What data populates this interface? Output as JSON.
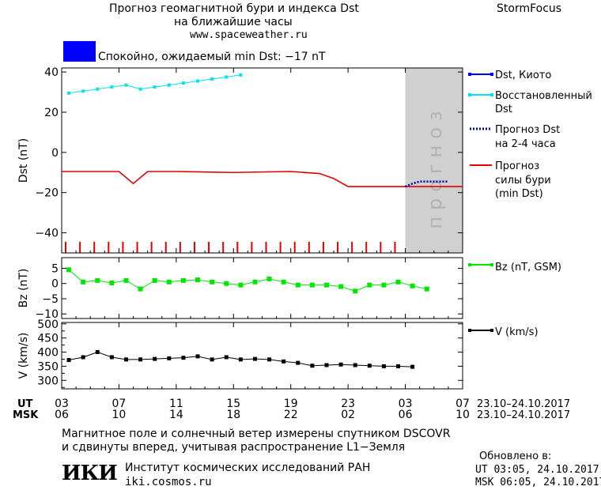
{
  "header": {
    "title_line1": "Прогноз геомагнитной бури и индекса Dst",
    "title_line2": "на ближайшие часы",
    "url": "www.spaceweather.ru",
    "brand": "StormFocus"
  },
  "status": {
    "text": "Спокойно, ожидаемый min Dst: −17 nT",
    "color": "#0000ff"
  },
  "colors": {
    "dst_kyoto": "#0000ff",
    "dst_restored": "#00e5e5",
    "dst_forecast": "#0000b0",
    "storm_forecast": "#e00000",
    "bz": "#00e600",
    "v": "#000000",
    "forecast_zone": "#d0d0d0"
  },
  "chart_data": [
    {
      "type": "line",
      "ylabel": "Dst (nT)",
      "ylim": [
        -50,
        42
      ],
      "yticks": [
        40,
        20,
        0,
        -20,
        -40
      ],
      "yticks_labels": [
        "40",
        "20",
        "0",
        "−20",
        "−40"
      ],
      "forecast_zone": {
        "x_start": 24.0,
        "x_end": 28.0,
        "label": "прогноз"
      },
      "series": [
        {
          "name": "Dst, Киото",
          "x": [],
          "y": []
        },
        {
          "name": "Восстановленный Dst",
          "x": [
            0.5,
            1.5,
            2.5,
            3.5,
            4.5,
            5.5,
            6.5,
            7.5,
            8.5,
            9.5,
            10.5,
            11.5,
            12.5
          ],
          "y": [
            29.5,
            30.5,
            31.5,
            32.5,
            33.5,
            31.5,
            32.5,
            33.5,
            34.5,
            35.5,
            36.5,
            37.5,
            38.5
          ]
        },
        {
          "name": "Прогноз Dst на 2-4 часа",
          "x": [
            24.0,
            24.5,
            25.0,
            26.0,
            27.0
          ],
          "y": [
            -17.0,
            -15.5,
            -14.5,
            -14.5,
            -14.5
          ]
        },
        {
          "name": "Прогноз силы бури (min Dst)",
          "x": [
            0,
            4,
            5,
            6,
            8,
            12,
            16,
            18,
            19,
            20,
            24,
            28
          ],
          "y": [
            -9.5,
            -9.5,
            -15.5,
            -9.5,
            -9.5,
            -10,
            -9.5,
            -10.5,
            -13,
            -17,
            -17,
            -17
          ]
        }
      ]
    },
    {
      "type": "line",
      "ylabel": "Bz (nT)",
      "ylim": [
        -11.5,
        8.5
      ],
      "yticks": [
        5,
        0,
        -5,
        -10
      ],
      "yticks_labels": [
        "5",
        "0",
        "−5",
        "−10"
      ],
      "series": [
        {
          "name": "Bz (nT, GSM)",
          "x": [
            0.5,
            1.5,
            2.5,
            3.5,
            4.5,
            5.5,
            6.5,
            7.5,
            8.5,
            9.5,
            10.5,
            11.5,
            12.5,
            13.5,
            14.5,
            15.5,
            16.5,
            17.5,
            18.5,
            19.5,
            20.5,
            21.5,
            22.5,
            23.5,
            24.5,
            25.5
          ],
          "y": [
            4.5,
            0.5,
            1.0,
            0.2,
            1.0,
            -1.8,
            1.0,
            0.5,
            1.0,
            1.2,
            0.5,
            0.0,
            -0.5,
            0.5,
            1.5,
            0.5,
            -0.5,
            -0.5,
            -0.5,
            -1.0,
            -2.5,
            -0.5,
            -0.5,
            0.5,
            -0.8,
            -1.8
          ]
        }
      ]
    },
    {
      "type": "line",
      "ylabel": "V (km/s)",
      "ylim": [
        270,
        505
      ],
      "yticks": [
        500,
        450,
        400,
        350,
        300
      ],
      "minor_yticks": [
        475,
        425,
        375,
        325,
        275
      ],
      "yticks_labels": [
        "500",
        "450",
        "400",
        "350",
        "300"
      ],
      "series": [
        {
          "name": "V (km/s)",
          "x": [
            0.5,
            1.5,
            2.5,
            3.5,
            4.5,
            5.5,
            6.5,
            7.5,
            8.5,
            9.5,
            10.5,
            11.5,
            12.5,
            13.5,
            14.5,
            15.5,
            16.5,
            17.5,
            18.5,
            19.5,
            20.5,
            21.5,
            22.5,
            23.5,
            24.5
          ],
          "y": [
            372,
            382,
            400,
            382,
            374,
            374,
            376,
            378,
            380,
            385,
            374,
            382,
            374,
            376,
            374,
            367,
            362,
            352,
            354,
            356,
            354,
            352,
            350,
            350,
            348
          ]
        }
      ]
    }
  ],
  "x_axis": {
    "ticks": [
      0,
      4,
      8,
      12,
      16,
      20,
      24,
      28
    ],
    "ut_label": "UT",
    "msk_label": "MSK",
    "ut": [
      "03",
      "07",
      "11",
      "15",
      "19",
      "23",
      "03",
      "07"
    ],
    "msk": [
      "06",
      "10",
      "14",
      "18",
      "22",
      "02",
      "06",
      "10"
    ],
    "date_range_ut": "23.10–24.10.2017",
    "date_range_msk": "23.10–24.10.2017"
  },
  "legend": {
    "dst_kyoto": "Dst, Киото",
    "restored_1": "Восстановленный",
    "restored_2": "Dst",
    "forecast_dst_1": "Прогноз Dst",
    "forecast_dst_2": "на 2-4 часа",
    "storm_1": "Прогноз",
    "storm_2": "силы бури",
    "storm_3": "(min Dst)",
    "bz": "Bz (nT, GSM)",
    "v": "V (km/s)"
  },
  "footer": {
    "line1": "Магнитное поле и солнечный ветер измерены спутником DSCOVR",
    "line2": "и сдвинуты вперед, учитывая распространение L1−Земля",
    "logo_text": "ИКИ",
    "institute": "Институт космических исследований РАН",
    "institute_url": "iki.cosmos.ru",
    "updated_title": "Обновлено в:",
    "updated_ut": "UT  03:05, 24.10.2017",
    "updated_msk": "MSK 06:05, 24.10.2017"
  }
}
